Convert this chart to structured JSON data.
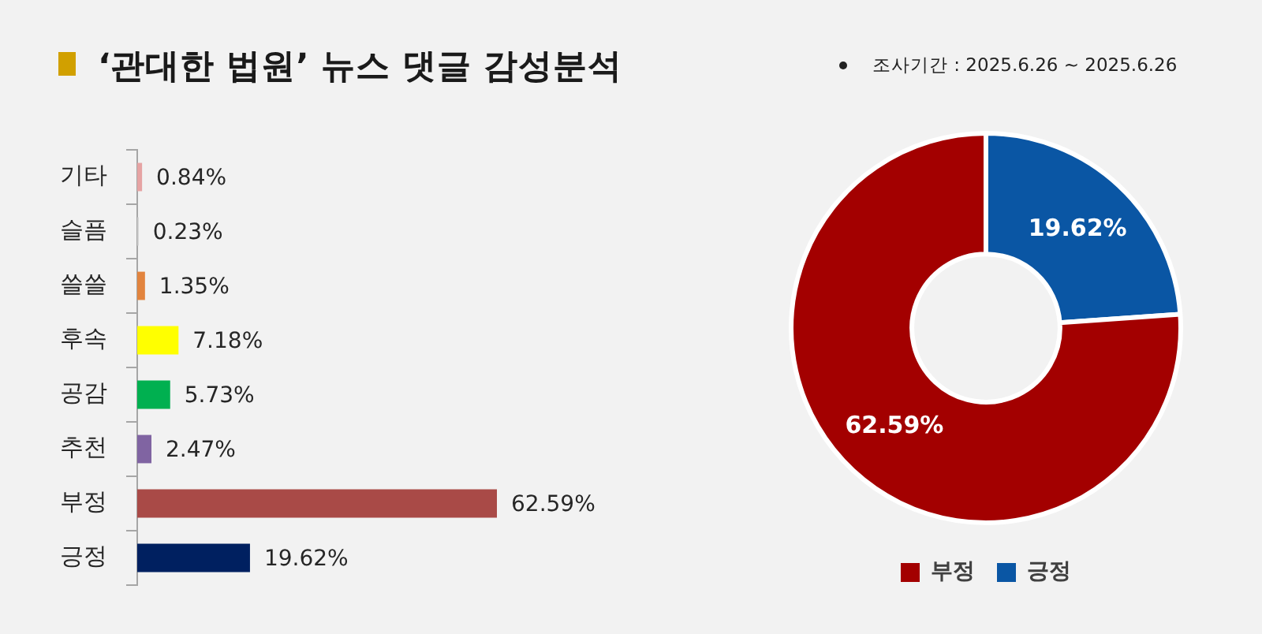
{
  "chart_data": [
    {
      "type": "bar",
      "title": "‘관대한 법원’ 뉴스 댓글 감성분석",
      "orientation": "horizontal",
      "categories": [
        "기타",
        "슬픔",
        "쓸쓸",
        "후속",
        "공감",
        "추천",
        "부정",
        "긍정"
      ],
      "values": [
        0.84,
        0.23,
        1.35,
        7.18,
        5.73,
        2.47,
        62.59,
        19.62
      ],
      "colors": [
        "#e6a3a3",
        "#c9c9c9",
        "#e2843e",
        "#ffff00",
        "#00b050",
        "#8064a2",
        "#a94a47",
        "#002060"
      ],
      "value_labels": [
        "0.84%",
        "0.23%",
        "1.35%",
        "7.18%",
        "5.73%",
        "2.47%",
        "62.59%",
        "19.62%"
      ]
    },
    {
      "type": "donut",
      "subtitle": "조사기간 : 2025.6.26 ~ 2025.6.26",
      "categories": [
        "긍정",
        "부정"
      ],
      "values": [
        19.62,
        62.59
      ],
      "colors": [
        "#0a56a4",
        "#a30000"
      ],
      "value_labels": [
        "19.62%",
        "62.59%"
      ],
      "legend": "bottom"
    }
  ]
}
